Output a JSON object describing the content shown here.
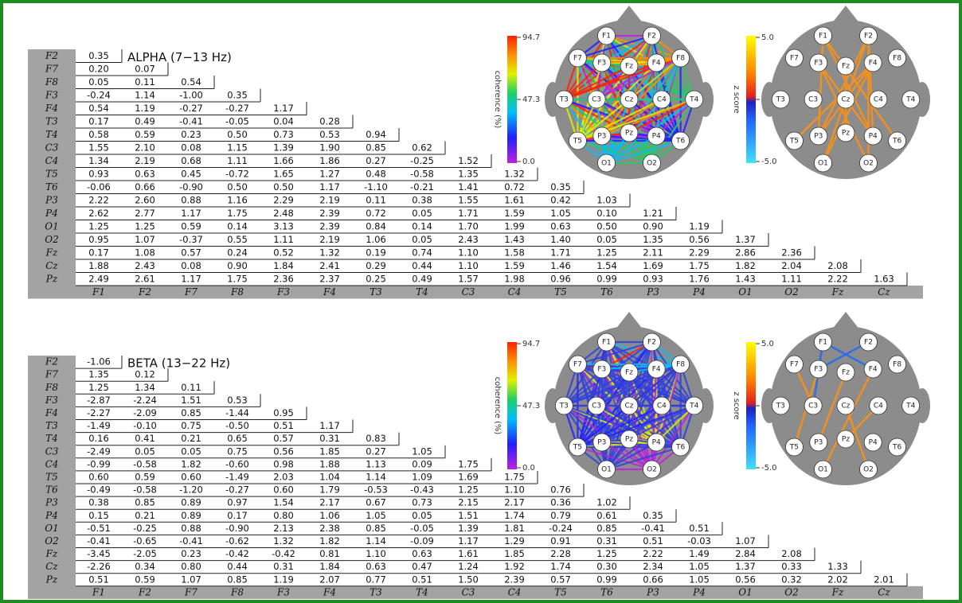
{
  "panels": [
    {
      "title": "ALPHA (7−13 Hz)",
      "row_labels": [
        "F2",
        "F7",
        "F8",
        "F3",
        "F4",
        "T3",
        "T4",
        "C3",
        "C4",
        "T5",
        "T6",
        "P3",
        "P4",
        "O1",
        "O2",
        "Fz",
        "Cz",
        "Pz"
      ],
      "col_labels": [
        "F1",
        "F2",
        "F7",
        "F8",
        "F3",
        "F4",
        "T3",
        "T4",
        "C3",
        "C4",
        "T5",
        "T6",
        "P3",
        "P4",
        "O1",
        "O2",
        "Fz",
        "Cz"
      ],
      "rows": [
        [
          "0.35"
        ],
        [
          "0.20",
          "0.07"
        ],
        [
          "0.05",
          "0.11",
          "0.54"
        ],
        [
          "-0.24",
          "1.14",
          "-1.00",
          "0.35"
        ],
        [
          "0.54",
          "1.19",
          "-0.27",
          "-0.27",
          "1.17"
        ],
        [
          "0.17",
          "0.49",
          "-0.41",
          "-0.05",
          "0.04",
          "0.28"
        ],
        [
          "0.58",
          "0.59",
          "0.23",
          "0.50",
          "0.73",
          "0.53",
          "0.94"
        ],
        [
          "1.55",
          "2.10",
          "0.08",
          "1.15",
          "1.39",
          "1.90",
          "0.85",
          "0.62"
        ],
        [
          "1.34",
          "2.19",
          "0.68",
          "1.11",
          "1.66",
          "1.86",
          "0.27",
          "-0.25",
          "1.52"
        ],
        [
          "0.93",
          "0.63",
          "0.45",
          "-0.72",
          "1.65",
          "1.27",
          "0.48",
          "-0.58",
          "1.35",
          "1.32"
        ],
        [
          "-0.06",
          "0.66",
          "-0.90",
          "0.50",
          "0.50",
          "1.17",
          "-1.10",
          "-0.21",
          "1.41",
          "0.72",
          "0.35"
        ],
        [
          "2.22",
          "2.60",
          "0.88",
          "1.16",
          "2.29",
          "2.19",
          "0.11",
          "0.38",
          "1.55",
          "1.61",
          "0.42",
          "1.03"
        ],
        [
          "2.62",
          "2.77",
          "1.17",
          "1.75",
          "2.48",
          "2.39",
          "0.72",
          "0.05",
          "1.71",
          "1.59",
          "1.05",
          "0.10",
          "1.21"
        ],
        [
          "1.25",
          "1.25",
          "0.59",
          "0.14",
          "3.13",
          "2.39",
          "0.84",
          "0.14",
          "1.70",
          "1.99",
          "0.63",
          "0.50",
          "0.90",
          "1.19"
        ],
        [
          "0.95",
          "1.07",
          "-0.37",
          "0.55",
          "1.11",
          "2.19",
          "1.06",
          "0.05",
          "2.43",
          "1.43",
          "1.40",
          "0.05",
          "1.35",
          "0.56",
          "1.37"
        ],
        [
          "0.17",
          "1.08",
          "0.57",
          "0.24",
          "0.52",
          "1.32",
          "0.19",
          "0.74",
          "1.10",
          "1.58",
          "1.71",
          "1.25",
          "2.11",
          "2.29",
          "2.86",
          "2.36"
        ],
        [
          "1.88",
          "2.43",
          "0.08",
          "0.90",
          "1.84",
          "2.41",
          "0.29",
          "0.44",
          "1.10",
          "1.59",
          "1.46",
          "1.54",
          "1.69",
          "1.75",
          "1.82",
          "2.04",
          "2.08"
        ],
        [
          "2.49",
          "2.61",
          "1.17",
          "1.75",
          "2.36",
          "2.37",
          "0.25",
          "0.49",
          "1.57",
          "1.98",
          "0.96",
          "0.99",
          "0.93",
          "1.76",
          "1.43",
          "1.11",
          "2.22",
          "1.63"
        ]
      ],
      "coherence_map": {
        "axis_label": "coherence (%)",
        "ticks": [
          "94.7",
          "47.3",
          "0.0"
        ],
        "electrodes": [
          "F1",
          "F2",
          "F7",
          "F3",
          "Fz",
          "F4",
          "F8",
          "T3",
          "C3",
          "Cz",
          "C4",
          "T4",
          "T5",
          "P3",
          "Pz",
          "P4",
          "T6",
          "O1",
          "O2"
        ]
      },
      "zscore_map": {
        "axis_label": "z score",
        "ticks": [
          "5.0",
          "0",
          "-5.0"
        ],
        "electrodes": [
          "F1",
          "F2",
          "F7",
          "F3",
          "Fz",
          "F4",
          "F8",
          "T3",
          "C3",
          "Cz",
          "C4",
          "T4",
          "T5",
          "P3",
          "Pz",
          "P4",
          "T6",
          "O1",
          "O2"
        ]
      }
    },
    {
      "title": "BETA (13−22 Hz)",
      "row_labels": [
        "F2",
        "F7",
        "F8",
        "F3",
        "F4",
        "T3",
        "T4",
        "C3",
        "C4",
        "T5",
        "T6",
        "P3",
        "P4",
        "O1",
        "O2",
        "Fz",
        "Cz",
        "Pz"
      ],
      "col_labels": [
        "F1",
        "F2",
        "F7",
        "F8",
        "F3",
        "F4",
        "T3",
        "T4",
        "C3",
        "C4",
        "T5",
        "T6",
        "P3",
        "P4",
        "O1",
        "O2",
        "Fz",
        "Cz"
      ],
      "rows": [
        [
          "-1.06"
        ],
        [
          "1.35",
          "0.12"
        ],
        [
          "1.25",
          "1.34",
          "0.11"
        ],
        [
          "-2.87",
          "-2.24",
          "1.51",
          "0.53"
        ],
        [
          "-2.27",
          "-2.09",
          "0.85",
          "-1.44",
          "0.95"
        ],
        [
          "-1.49",
          "-0.10",
          "0.75",
          "-0.50",
          "0.51",
          "1.17"
        ],
        [
          "0.16",
          "0.41",
          "0.21",
          "0.65",
          "0.57",
          "0.31",
          "0.83"
        ],
        [
          "-2.49",
          "0.05",
          "0.05",
          "0.75",
          "0.56",
          "1.85",
          "0.27",
          "1.05"
        ],
        [
          "-0.99",
          "-0.58",
          "1.82",
          "-0.60",
          "0.98",
          "1.88",
          "1.13",
          "0.09",
          "1.75"
        ],
        [
          "0.60",
          "0.59",
          "0.60",
          "-1.49",
          "2.03",
          "1.04",
          "1.14",
          "1.09",
          "1.69",
          "1.75"
        ],
        [
          "-0.49",
          "-0.58",
          "-1.20",
          "-0.27",
          "0.60",
          "1.79",
          "-0.53",
          "-0.43",
          "1.25",
          "1.10",
          "0.76"
        ],
        [
          "0.38",
          "0.85",
          "0.89",
          "0.97",
          "1.54",
          "2.17",
          "0.67",
          "0.73",
          "2.15",
          "2.17",
          "0.36",
          "1.02"
        ],
        [
          "0.15",
          "0.21",
          "0.89",
          "0.17",
          "0.80",
          "1.06",
          "1.05",
          "0.05",
          "1.51",
          "1.74",
          "0.79",
          "0.61",
          "0.35"
        ],
        [
          "-0.51",
          "-0.25",
          "0.88",
          "-0.90",
          "2.13",
          "2.38",
          "0.85",
          "-0.05",
          "1.39",
          "1.81",
          "-0.24",
          "0.85",
          "-0.41",
          "0.51"
        ],
        [
          "-0.41",
          "-0.65",
          "-0.41",
          "-0.62",
          "1.32",
          "1.82",
          "1.14",
          "-0.09",
          "1.17",
          "1.29",
          "0.91",
          "0.31",
          "0.51",
          "-0.03",
          "1.07"
        ],
        [
          "-3.45",
          "-2.05",
          "0.23",
          "-0.42",
          "-0.42",
          "0.81",
          "1.10",
          "0.63",
          "1.61",
          "1.85",
          "2.28",
          "1.25",
          "2.22",
          "1.49",
          "2.84",
          "2.08"
        ],
        [
          "-2.26",
          "0.34",
          "0.80",
          "0.44",
          "0.31",
          "1.84",
          "0.63",
          "0.47",
          "1.24",
          "1.92",
          "1.74",
          "0.30",
          "2.34",
          "1.05",
          "1.37",
          "0.33",
          "1.33"
        ],
        [
          "0.51",
          "0.59",
          "1.07",
          "0.85",
          "1.19",
          "2.07",
          "0.77",
          "0.51",
          "1.50",
          "2.39",
          "0.57",
          "0.99",
          "0.66",
          "1.05",
          "0.56",
          "0.32",
          "2.02",
          "2.01"
        ]
      ],
      "col_labels_bottom": true,
      "coherence_map": {
        "axis_label": "coherence (%)",
        "ticks": [
          "94.7",
          "47.3",
          "0.0"
        ],
        "electrodes": [
          "F1",
          "F2",
          "F7",
          "F3",
          "Fz",
          "F4",
          "F8",
          "T3",
          "C3",
          "Cz",
          "C4",
          "T4",
          "T5",
          "P3",
          "Pz",
          "P4",
          "T6",
          "O1",
          "O2"
        ]
      },
      "zscore_map": {
        "axis_label": "z score",
        "ticks": [
          "5.0",
          "0",
          "-5.0"
        ],
        "electrodes": [
          "F1",
          "F2",
          "F7",
          "F3",
          "Fz",
          "F4",
          "F8",
          "T3",
          "C3",
          "Cz",
          "C4",
          "T4",
          "T5",
          "P3",
          "Pz",
          "P4",
          "T6",
          "O1",
          "O2"
        ]
      }
    }
  ]
}
